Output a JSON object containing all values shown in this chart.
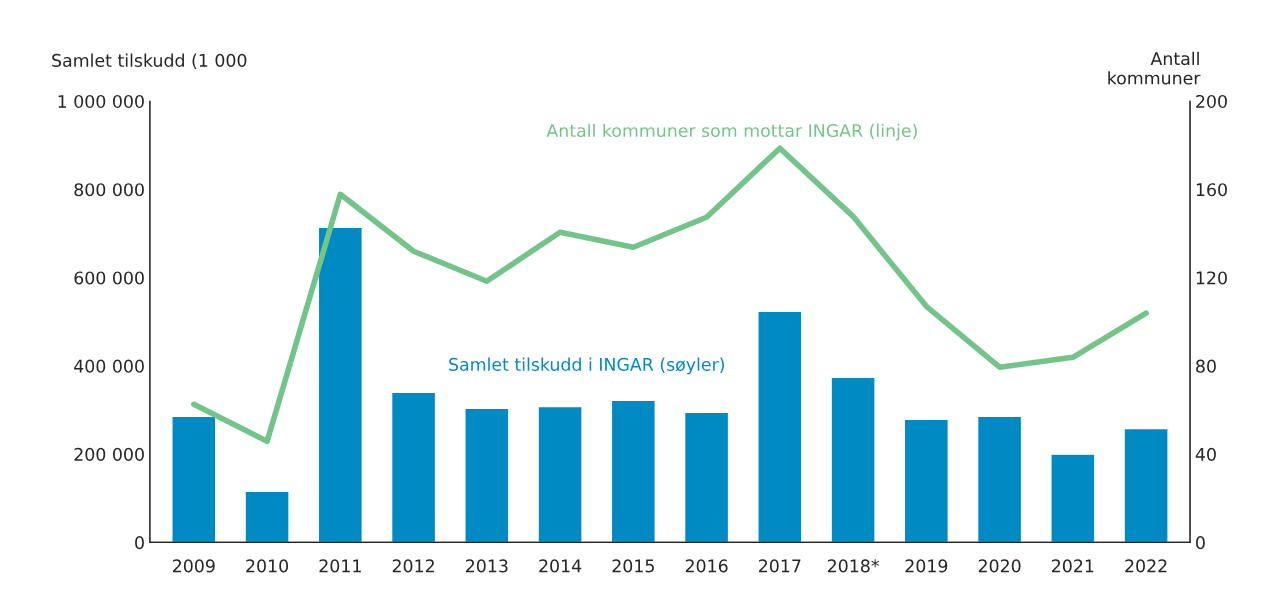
{
  "chart_data": {
    "type": "bar",
    "ylabel": "Samlet tilskudd (1 000",
    "y2label": "Antall\nkommuner",
    "categories": [
      "2009",
      "2010",
      "2011",
      "2012",
      "2013",
      "2014",
      "2015",
      "2016",
      "2017",
      "2018*",
      "2019",
      "2020",
      "2021",
      "2022"
    ],
    "series": [
      {
        "name": "Samlet tilskudd i INGAR (søyler)",
        "color": "#008ac4",
        "values": [
          286000,
          116000,
          714000,
          340000,
          304000,
          308000,
          322000,
          295000,
          524000,
          374000,
          279000,
          286000,
          200000,
          258000
        ]
      },
      {
        "name": "Antall kommuner som mottar INGAR (linje)",
        "type": "line",
        "axis": "y2",
        "color": "#72c489",
        "values": [
          62.6,
          45.8,
          157.8,
          132,
          118.4,
          140.6,
          133.8,
          147.4,
          178.7,
          147.8,
          107,
          79.4,
          83.9,
          103.9
        ]
      }
    ],
    "ylim": [
      0,
      1000000
    ],
    "yticks": [
      0,
      {
        "value": 200000,
        "label": "200 000"
      },
      {
        "value": 400000,
        "label": "400 000"
      },
      {
        "value": 600000,
        "label": "600 000"
      },
      {
        "value": 800000,
        "label": "800 000"
      },
      {
        "value": 1000000,
        "label": "1 000 000"
      }
    ],
    "y2lim": [
      0,
      200
    ],
    "y2ticks": [
      0,
      40,
      80,
      120,
      160,
      200
    ],
    "grid": false
  }
}
